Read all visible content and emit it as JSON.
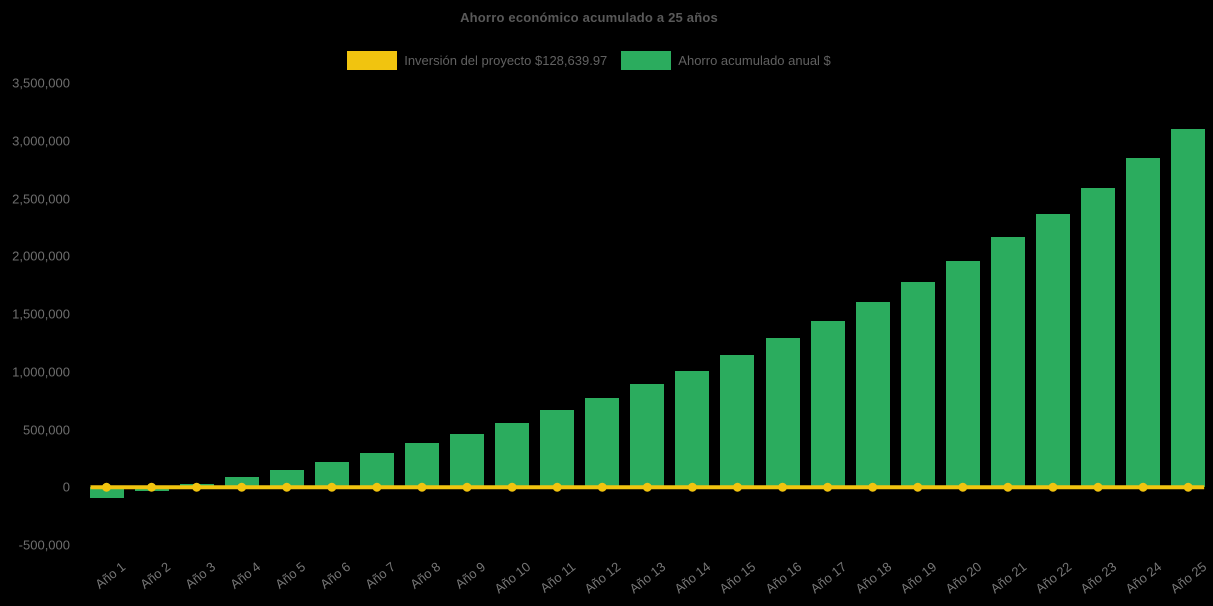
{
  "chart_data": {
    "type": "bar",
    "title": "Ahorro económico acumulado a 25 años",
    "categories": [
      "Año 1",
      "Año 2",
      "Año 3",
      "Año 4",
      "Año 5",
      "Año 6",
      "Año 7",
      "Año 8",
      "Año 9",
      "Año 10",
      "Año 11",
      "Año 12",
      "Año 13",
      "Año 14",
      "Año 15",
      "Año 16",
      "Año 17",
      "Año 18",
      "Año 19",
      "Año 20",
      "Año 21",
      "Año 22",
      "Año 23",
      "Año 24",
      "Año 25"
    ],
    "series": [
      {
        "name": "Inversión del proyecto $128,639.97",
        "type": "line",
        "color": "#F1C40F",
        "marker": "circle",
        "values": [
          0,
          0,
          0,
          0,
          0,
          0,
          0,
          0,
          0,
          0,
          0,
          0,
          0,
          0,
          0,
          0,
          0,
          0,
          0,
          0,
          0,
          0,
          0,
          0,
          0
        ]
      },
      {
        "name": "Ahorro acumulado anual $",
        "type": "bar",
        "color": "#2BAC5E",
        "values": [
          -95000,
          -30000,
          30000,
          85000,
          150000,
          215000,
          300000,
          380000,
          465000,
          560000,
          665000,
          775000,
          895000,
          1010000,
          1145000,
          1290000,
          1440000,
          1600000,
          1775000,
          1960000,
          2170000,
          2370000,
          2590000,
          2850000,
          3100000
        ]
      }
    ],
    "investment_amount_label": "$128,639.97",
    "ylim": [
      -500000,
      3500000
    ],
    "ytick_step": 500000,
    "ytick_labels": [
      "3,500,000",
      "3,000,000",
      "2,500,000",
      "2,000,000",
      "1,500,000",
      "1,000,000",
      "500,000",
      "0",
      "-500,000"
    ],
    "ytick_values": [
      3500000,
      3000000,
      2500000,
      2000000,
      1500000,
      1000000,
      500000,
      0,
      -500000
    ],
    "grid": false,
    "legend_position": "top",
    "background_color": "#000000",
    "text_color": "#595959"
  }
}
